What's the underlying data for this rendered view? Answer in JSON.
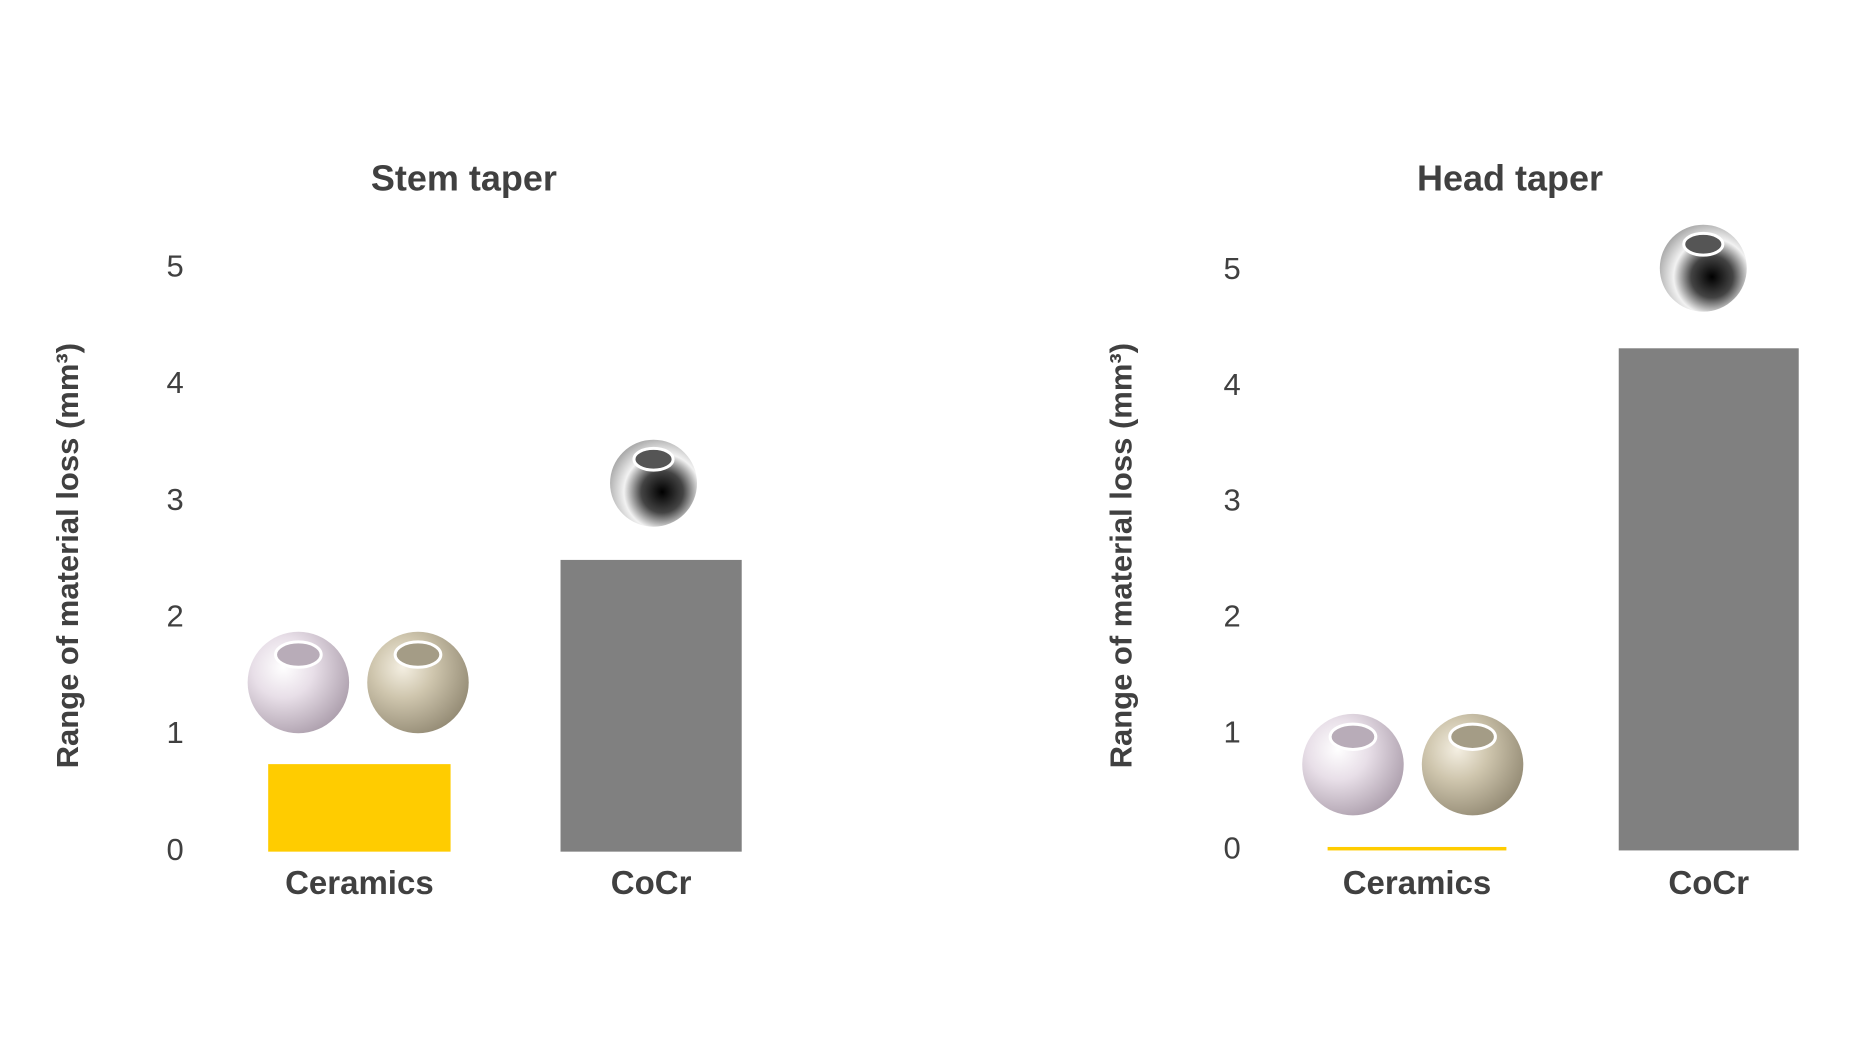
{
  "chart_data": [
    {
      "type": "bar",
      "title": "Stem taper",
      "y_label": "Range of material loss (mm³)",
      "categories": [
        "Ceramics",
        "CoCr"
      ],
      "values": [
        0.75,
        2.5
      ],
      "colors": [
        "#ffcc00",
        "#808080"
      ],
      "ylim": [
        0,
        5
      ],
      "yticks": [
        0,
        1,
        2,
        3,
        4,
        5
      ]
    },
    {
      "type": "bar",
      "title": "Head taper",
      "y_label": "Range of material loss (mm³)",
      "categories": [
        "Ceramics",
        "CoCr"
      ],
      "values": [
        0.03,
        4.33
      ],
      "colors": [
        "#ffcc00",
        "#808080"
      ],
      "ylim": [
        0,
        5
      ],
      "yticks": [
        0,
        1,
        2,
        3,
        4,
        5
      ]
    }
  ]
}
